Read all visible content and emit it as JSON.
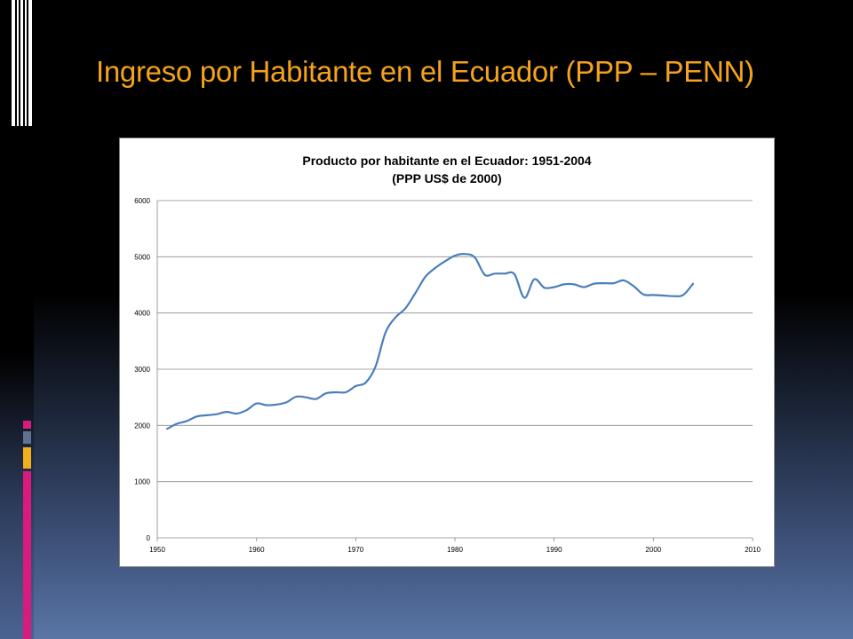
{
  "slide": {
    "title": "Ingreso por Habitante en el Ecuador (PPP – PENN)",
    "accent_color": "#f5a21c"
  },
  "chart_data": {
    "type": "line",
    "title": "Producto por  habitante en el Ecuador: 1951-2004",
    "subtitle": "(PPP US$ de 2000)",
    "xlim": [
      1950,
      2010
    ],
    "ylim": [
      0,
      6000
    ],
    "x_ticks": [
      1950,
      1960,
      1970,
      1980,
      1990,
      2000,
      2010
    ],
    "y_ticks": [
      0,
      1000,
      2000,
      3000,
      4000,
      5000,
      6000
    ],
    "x_tick_labels": [
      "1950",
      "1960",
      "1970",
      "1980",
      "1990",
      "2000",
      "2010"
    ],
    "y_tick_labels": [
      "0",
      "1000",
      "2000",
      "3000",
      "4000",
      "5000",
      "6000"
    ],
    "grid": "horizontal",
    "series_color": "#4a7ebb",
    "series": [
      {
        "x": [
          1951,
          1952,
          1953,
          1954,
          1955,
          1956,
          1957,
          1958,
          1959,
          1960,
          1961,
          1962,
          1963,
          1964,
          1965,
          1966,
          1967,
          1968,
          1969,
          1970,
          1971,
          1972,
          1973,
          1974,
          1975,
          1976,
          1977,
          1978,
          1979,
          1980,
          1981,
          1982,
          1983,
          1984,
          1985,
          1986,
          1987,
          1988,
          1989,
          1990,
          1991,
          1992,
          1993,
          1994,
          1995,
          1996,
          1997,
          1998,
          1999,
          2000,
          2001,
          2002,
          2003,
          2004
        ],
        "y": [
          1940,
          2030,
          2080,
          2160,
          2180,
          2200,
          2240,
          2210,
          2270,
          2390,
          2360,
          2370,
          2410,
          2510,
          2500,
          2470,
          2570,
          2590,
          2590,
          2700,
          2760,
          3050,
          3650,
          3920,
          4080,
          4350,
          4640,
          4800,
          4920,
          5020,
          5050,
          4990,
          4680,
          4700,
          4700,
          4690,
          4270,
          4600,
          4450,
          4460,
          4510,
          4510,
          4460,
          4520,
          4530,
          4530,
          4580,
          4480,
          4330,
          4320,
          4310,
          4300,
          4320,
          4520
        ]
      }
    ]
  }
}
